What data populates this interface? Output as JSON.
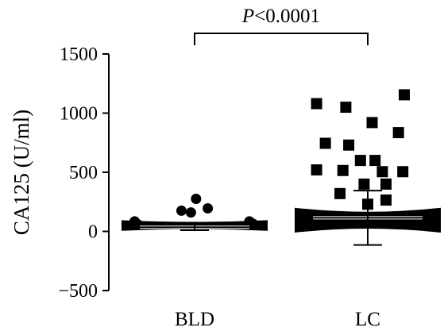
{
  "chart_data": {
    "type": "scatter",
    "title": "",
    "xlabel": "",
    "ylabel": "CA125 (U/ml)",
    "ylim": [
      -500,
      1500
    ],
    "yticks": [
      -500,
      0,
      500,
      1000,
      1500
    ],
    "ytick_labels": [
      "−500",
      "0",
      "500",
      "1000",
      "1500"
    ],
    "categories": [
      "BLD",
      "LC"
    ],
    "annotation": {
      "text_italic": "P",
      "text_rest": "<0.0001",
      "between": [
        "BLD",
        "LC"
      ]
    },
    "groups": [
      {
        "category": "BLD",
        "marker": "circle",
        "color": "#000000",
        "mean": 35,
        "sd_upper": 60,
        "sd_lower": 10,
        "dense_band": {
          "low": 5,
          "high": 95
        },
        "points": [
          {
            "offset": -0.82,
            "y": 85
          },
          {
            "offset": -0.78,
            "y": 60
          },
          {
            "offset": 0.75,
            "y": 85
          },
          {
            "offset": 0.8,
            "y": 65
          },
          {
            "offset": -0.18,
            "y": 175
          },
          {
            "offset": 0.02,
            "y": 275
          },
          {
            "offset": 0.18,
            "y": 195
          },
          {
            "offset": -0.05,
            "y": 160
          }
        ]
      },
      {
        "category": "LC",
        "marker": "square",
        "color": "#000000",
        "mean": 115,
        "sd_upper": 345,
        "sd_lower": -115,
        "dense_band": {
          "low": -10,
          "high": 200
        },
        "points": [
          {
            "offset": -0.7,
            "y": 1080
          },
          {
            "offset": -0.3,
            "y": 1050
          },
          {
            "offset": 0.5,
            "y": 1155
          },
          {
            "offset": 0.06,
            "y": 920
          },
          {
            "offset": 0.42,
            "y": 835
          },
          {
            "offset": -0.58,
            "y": 745
          },
          {
            "offset": -0.26,
            "y": 730
          },
          {
            "offset": -0.1,
            "y": 600
          },
          {
            "offset": 0.1,
            "y": 600
          },
          {
            "offset": -0.7,
            "y": 520
          },
          {
            "offset": -0.34,
            "y": 515
          },
          {
            "offset": 0.2,
            "y": 505
          },
          {
            "offset": 0.48,
            "y": 505
          },
          {
            "offset": -0.05,
            "y": 400
          },
          {
            "offset": 0.25,
            "y": 400
          },
          {
            "offset": -0.38,
            "y": 320
          },
          {
            "offset": 0.0,
            "y": 230
          },
          {
            "offset": 0.25,
            "y": 265
          }
        ]
      }
    ]
  }
}
